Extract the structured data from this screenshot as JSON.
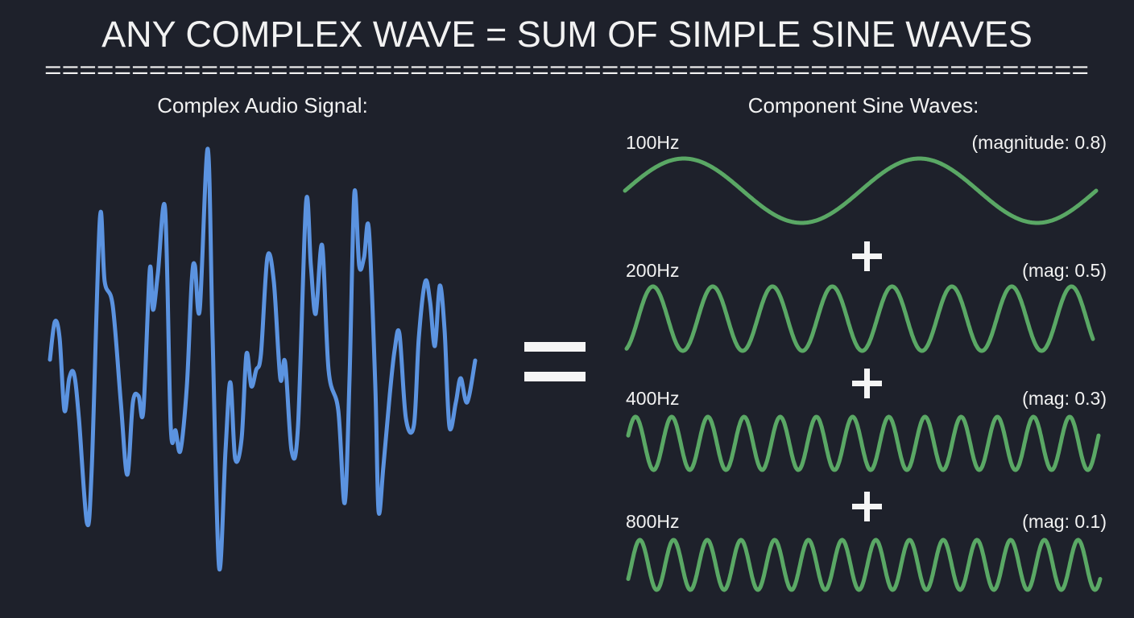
{
  "title": "ANY COMPLEX WAVE = SUM OF SIMPLE SINE WAVES",
  "separator": "============================================================",
  "left": {
    "heading": "Complex Audio Signal:",
    "wave_color": "#5b93e0"
  },
  "equals_sign": "=",
  "right": {
    "heading": "Component Sine Waves:",
    "wave_color": "#5aa865",
    "plus_sign": "+",
    "components": [
      {
        "frequency": "100Hz",
        "magnitude_label": "(magnitude: 0.8)",
        "magnitude": 0.8
      },
      {
        "frequency": "200Hz",
        "magnitude_label": "(mag: 0.5)",
        "magnitude": 0.5
      },
      {
        "frequency": "400Hz",
        "magnitude_label": "(mag: 0.3)",
        "magnitude": 0.3
      },
      {
        "frequency": "800Hz",
        "magnitude_label": "(mag: 0.1)",
        "magnitude": 0.1
      }
    ]
  }
}
